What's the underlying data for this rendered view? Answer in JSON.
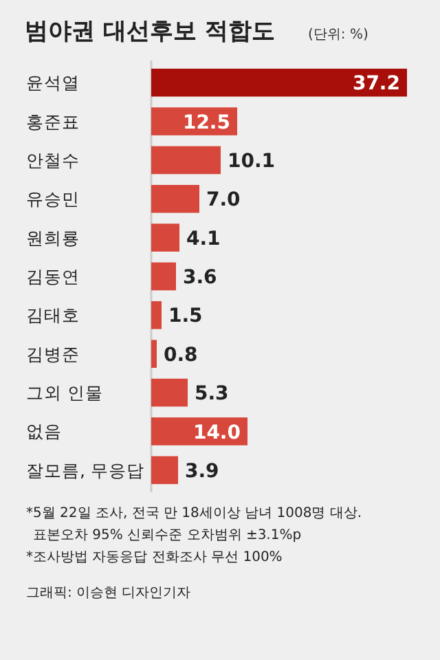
{
  "chart_data": {
    "type": "bar",
    "orientation": "horizontal",
    "title": "범야권 대선후보 적합도",
    "subtitle": "(단위: %)",
    "categories": [
      "윤석열",
      "홍준표",
      "안철수",
      "유승민",
      "원희룡",
      "김동연",
      "김태호",
      "김병준",
      "그외 인물",
      "없음",
      "잘모름, 무응답"
    ],
    "values": [
      37.2,
      12.5,
      10.1,
      7.0,
      4.1,
      3.6,
      1.5,
      0.8,
      5.3,
      14.0,
      3.9
    ],
    "value_labels": [
      "37.2",
      "12.5",
      "10.1",
      "7.0",
      "4.1",
      "3.6",
      "1.5",
      "0.8",
      "5.3",
      "14.0",
      "3.9"
    ],
    "colors": [
      "#a80f0a",
      "#d8473b",
      "#d8473b",
      "#d8473b",
      "#d8473b",
      "#d8473b",
      "#d8473b",
      "#d8473b",
      "#d8473b",
      "#d8473b",
      "#d8473b"
    ],
    "xlim": [
      0,
      37.2
    ],
    "tick_labels": "y",
    "annotations": [
      "*5월 22일 조사, 전국 만 18세이상 남녀 1008명 대상.",
      "표본오차 95% 신뢰수준 오차범위 ±3.1%p",
      "*조사방법 자동응답 전화조사 무선 100%",
      "그래픽: 이승현 디자인기자"
    ]
  }
}
